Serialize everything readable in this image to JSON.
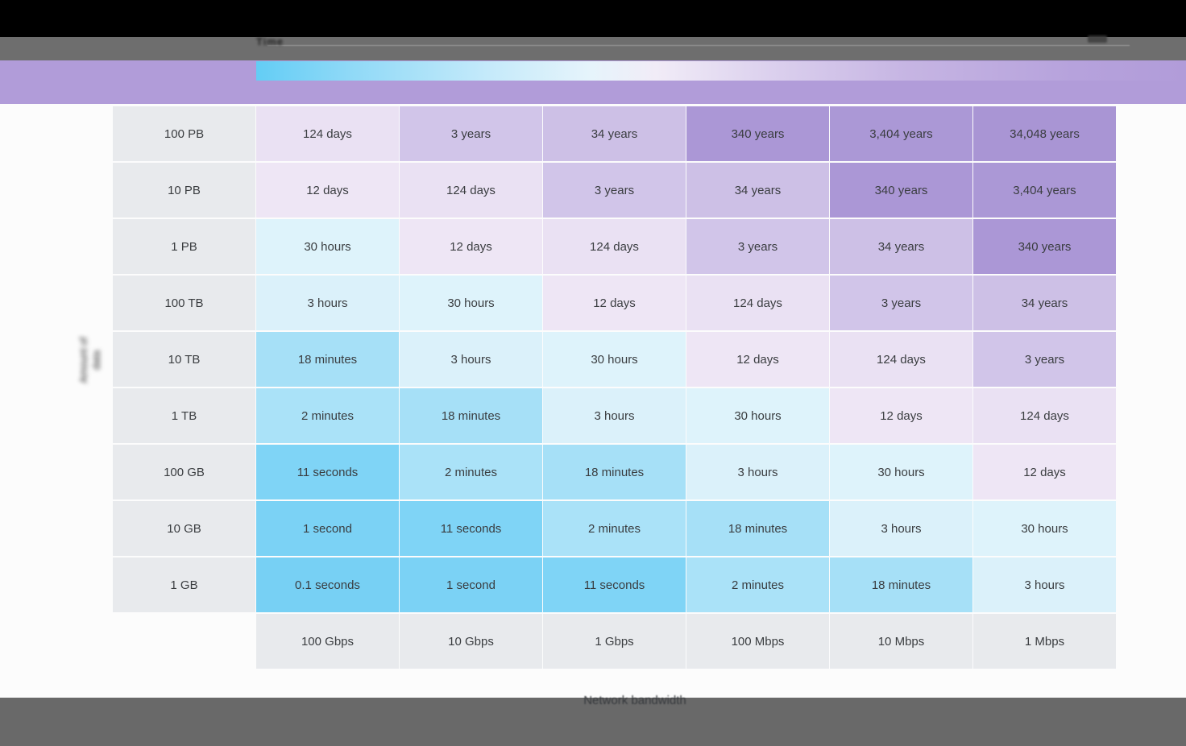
{
  "colors": {
    "titlebar": "#000000",
    "toolbar": "#6e6e6e",
    "footer": "#696969",
    "header_band": "#b19cd9",
    "row_header_bg": "#e8eaed",
    "cell_text": "#3a3d40"
  },
  "toolbar": {
    "label_blurred": "Time",
    "icon": "blurred-toolbar-icon"
  },
  "legend": {
    "css_gradient": "linear-gradient(90deg,#63cdf5 0%,#8fd9f7 10%,#c5eafa 25%,#e6f4fb 36%,#f1ecf7 43%,#dcd1ee 55%,#c6b5e3 70%,#b6a2dc 88%,#b19cd9 100%)",
    "stops": [
      "#63cdf5",
      "#c5eafa",
      "#f1ecf7",
      "#c6b5e3",
      "#b19cd9"
    ]
  },
  "axes": {
    "x_label": "Network bandwidth",
    "y_label_blurred_line1": "Amount of",
    "y_label_blurred_line2": "data"
  },
  "chart_data": {
    "type": "heatmap",
    "xlabel": "Network bandwidth",
    "ylabel": "Amount of data (blurred)",
    "columns": [
      "100 Gbps",
      "10 Gbps",
      "1 Gbps",
      "100 Mbps",
      "10 Mbps",
      "1 Mbps"
    ],
    "rows": [
      "100 PB",
      "10 PB",
      "1 PB",
      "100 TB",
      "10 TB",
      "1 TB",
      "100 GB",
      "10 GB",
      "1 GB"
    ],
    "values": [
      [
        "124 days",
        "3 years",
        "34 years",
        "340 years",
        "3,404 years",
        "34,048 years"
      ],
      [
        "12 days",
        "124 days",
        "3 years",
        "34 years",
        "340 years",
        "3,404 years"
      ],
      [
        "30 hours",
        "12 days",
        "124 days",
        "3 years",
        "34 years",
        "340 years"
      ],
      [
        "3 hours",
        "30 hours",
        "12 days",
        "124 days",
        "3 years",
        "34 years"
      ],
      [
        "18 minutes",
        "3 hours",
        "30 hours",
        "12 days",
        "124 days",
        "3 years"
      ],
      [
        "2 minutes",
        "18 minutes",
        "3 hours",
        "30 hours",
        "12 days",
        "124 days"
      ],
      [
        "11 seconds",
        "2 minutes",
        "18 minutes",
        "3 hours",
        "30 hours",
        "12 days"
      ],
      [
        "1 second",
        "11 seconds",
        "2 minutes",
        "18 minutes",
        "3 hours",
        "30 hours"
      ],
      [
        "0.1 seconds",
        "1 second",
        "11 seconds",
        "2 minutes",
        "18 minutes",
        "3 hours"
      ]
    ],
    "value_colors": {
      "0.1 seconds": "#77d0f4",
      "1 second": "#7bd2f5",
      "11 seconds": "#7fd4f6",
      "2 minutes": "#aae2f8",
      "18 minutes": "#a6e0f7",
      "3 hours": "#dbf1fa",
      "30 hours": "#def3fb",
      "12 days": "#eee6f5",
      "124 days": "#eae1f3",
      "3 years": "#d1c5e9",
      "34 years": "#cdc0e6",
      "340 years": "#ab97d6",
      "3,404 years": "#ab98d6",
      "34,048 years": "#a995d4"
    },
    "legend_position": "top",
    "grid": false
  }
}
